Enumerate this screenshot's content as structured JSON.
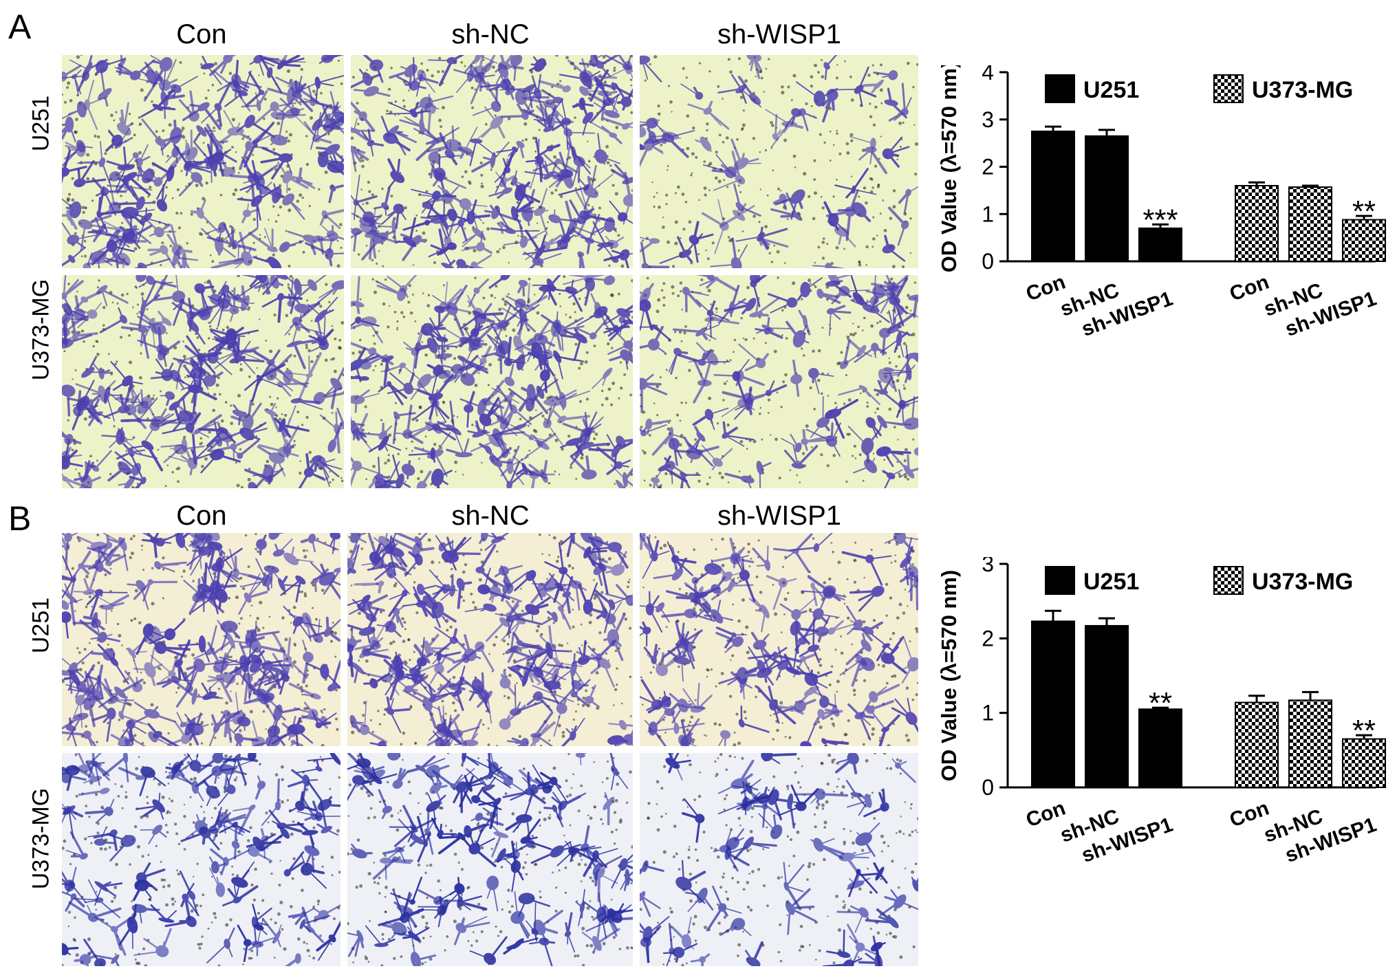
{
  "panels": [
    {
      "letter": "A",
      "columns": [
        "Con",
        "sh-NC",
        "sh-WISP1"
      ],
      "rows": [
        "U251",
        "U373-MG"
      ]
    },
    {
      "letter": "B",
      "columns": [
        "Con",
        "sh-NC",
        "sh-WISP1"
      ],
      "rows": [
        "U251",
        "U373-MG"
      ]
    }
  ],
  "colors": {
    "stain_purple": "#4b3fb0",
    "stain_blue": "#2a2ea0",
    "background_yellow": "#eef2c8",
    "background_cream": "#f3eed4",
    "background_white": "#eef0f6"
  },
  "chart_data": [
    {
      "type": "bar",
      "panel": "A",
      "ylabel": "OD Value (λ=570 nm)",
      "ylim": [
        0,
        4
      ],
      "yticks": [
        "0",
        "1",
        "2",
        "3",
        "4"
      ],
      "categories": [
        "Con",
        "sh-NC",
        "sh-WISP1"
      ],
      "series": [
        {
          "name": "U251",
          "fill": "solid-black",
          "values": [
            2.75,
            2.65,
            0.7
          ],
          "errors": [
            0.1,
            0.13,
            0.08
          ],
          "significance": [
            "",
            "",
            "***"
          ]
        },
        {
          "name": "U373-MG",
          "fill": "checker",
          "values": [
            1.6,
            1.57,
            0.88
          ],
          "errors": [
            0.07,
            0.03,
            0.08
          ],
          "significance": [
            "",
            "",
            "**"
          ]
        }
      ],
      "legend": "top"
    },
    {
      "type": "bar",
      "panel": "B",
      "ylabel": "OD Value (λ=570 nm)",
      "ylim": [
        0,
        3
      ],
      "yticks": [
        "0",
        "1",
        "2",
        "3"
      ],
      "categories": [
        "Con",
        "sh-NC",
        "sh-WISP1"
      ],
      "series": [
        {
          "name": "U251",
          "fill": "solid-black",
          "values": [
            2.23,
            2.17,
            1.05
          ],
          "errors": [
            0.14,
            0.1,
            0.02
          ],
          "significance": [
            "",
            "",
            "**"
          ]
        },
        {
          "name": "U373-MG",
          "fill": "checker",
          "values": [
            1.14,
            1.17,
            0.65
          ],
          "errors": [
            0.09,
            0.11,
            0.05
          ],
          "significance": [
            "",
            "",
            "**"
          ]
        }
      ],
      "legend": "top"
    }
  ]
}
